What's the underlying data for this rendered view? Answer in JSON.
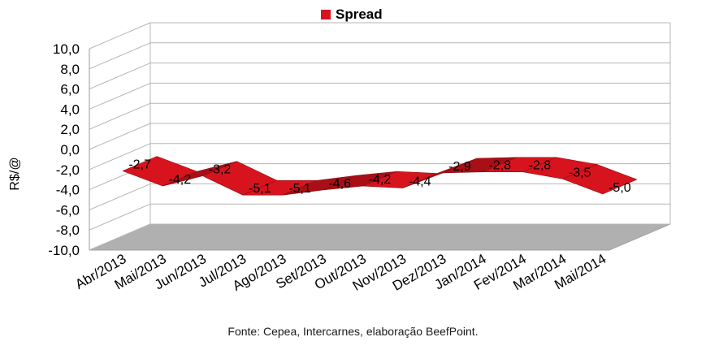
{
  "legend": {
    "label": "Spread",
    "color": "#d7141e"
  },
  "source_note": "Fonte: Cepea, Intercarnes, elaboração BeefPoint.",
  "chart_data": {
    "type": "area",
    "title": "",
    "xlabel": "",
    "ylabel": "R$/@",
    "ylim": [
      -10,
      10
    ],
    "yticks": [
      "10,0",
      "8,0",
      "6,0",
      "4,0",
      "2,0",
      "0,0",
      "-2,0",
      "-4,0",
      "-6,0",
      "-8,0",
      "-10,0"
    ],
    "yticks_values": [
      10,
      8,
      6,
      4,
      2,
      0,
      -2,
      -4,
      -6,
      -8,
      -10
    ],
    "categories": [
      "Abr/2013",
      "Mai/2013",
      "Jun/2013",
      "Jul/2013",
      "Ago/2013",
      "Set/2013",
      "Out/2013",
      "Nov/2013",
      "Dez/2013",
      "Jan/2014",
      "Fev/2014",
      "Mar/2014",
      "Mai/2014"
    ],
    "series": [
      {
        "name": "Spread",
        "color": "#d7141e",
        "values": [
          -2.7,
          -4.2,
          -3.2,
          -5.1,
          -5.1,
          -4.6,
          -4.2,
          -4.4,
          -2.9,
          -2.8,
          -2.8,
          -3.5,
          -5.0
        ],
        "labels": [
          "-2,7",
          "-4,2",
          "-3,2",
          "-5,1",
          "-5,1",
          "-4,6",
          "-4,2",
          "-4,4",
          "-2,9",
          "-2,8",
          "-2,8",
          "-3,5",
          "-5,0"
        ]
      }
    ],
    "grid": true,
    "legend_position": "top",
    "style": "3d"
  }
}
